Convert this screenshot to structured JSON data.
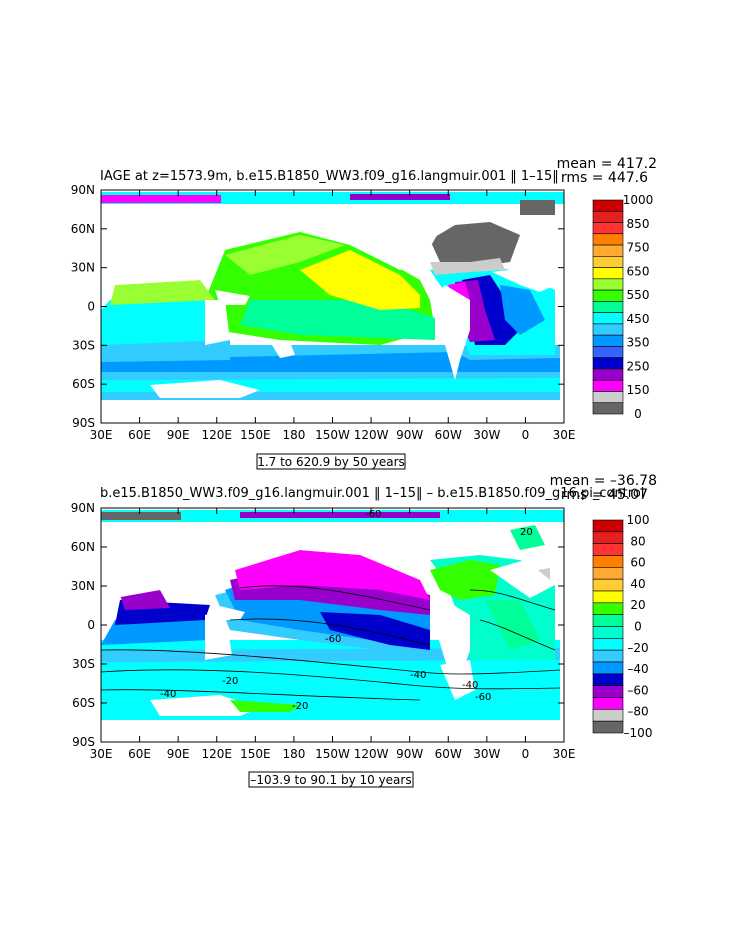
{
  "panels": [
    {
      "title": "IAGE at z=1573.9m, b.e15.B1850_WW3.f09_g16.langmuir.001 ‖ 1–15‖",
      "mean_text": "mean = 417.2",
      "rms_text": "rms = 447.6",
      "range_text": "1.7 to 620.9 by 50 years",
      "legend_labels": [
        "1000",
        "850",
        "750",
        "650",
        "550",
        "450",
        "350",
        "250",
        "150",
        "0"
      ],
      "legend_colors": [
        "#cc0000",
        "#e62020",
        "#ff3333",
        "#ff7f00",
        "#ffaa33",
        "#ffcc33",
        "#ffff00",
        "#99ff33",
        "#33ff00",
        "#00ff99",
        "#00ffff",
        "#33ccff",
        "#0099ff",
        "#3366ff",
        "#0000cc",
        "#9900cc",
        "#ff00ff",
        "#cccccc",
        "#666666"
      ]
    },
    {
      "title": "b.e15.B1850_WW3.f09_g16.langmuir.001 ‖ 1–15‖ – b.e15.B1850.f09_g16.pi_control",
      "mean_text": "mean = –36.78",
      "rms_text": "rms = 45.07",
      "range_text": "–103.9 to 90.1 by 10 years",
      "legend_labels": [
        "100",
        "80",
        "60",
        "40",
        "20",
        "0",
        "–20",
        "–40",
        "–60",
        "–80",
        "–100"
      ],
      "legend_colors": [
        "#cc0000",
        "#e62020",
        "#ff3333",
        "#ff7f00",
        "#ffaa33",
        "#ffcc33",
        "#ffff00",
        "#33ff00",
        "#00ff99",
        "#00ffcc",
        "#00ffff",
        "#33ccff",
        "#0099ff",
        "#0000cc",
        "#9900cc",
        "#ff00ff",
        "#cccccc",
        "#666666"
      ],
      "contour_labels": [
        "-60",
        "-40",
        "-20",
        "-20",
        "-40",
        "-40",
        "-60",
        "-60",
        "20"
      ]
    }
  ],
  "lat_labels": [
    "90N",
    "60N",
    "30N",
    "0",
    "30S",
    "60S",
    "90S"
  ],
  "lon_labels": [
    "30E",
    "60E",
    "90E",
    "120E",
    "150E",
    "180",
    "150W",
    "120W",
    "90W",
    "60W",
    "30W",
    "0",
    "30E"
  ]
}
